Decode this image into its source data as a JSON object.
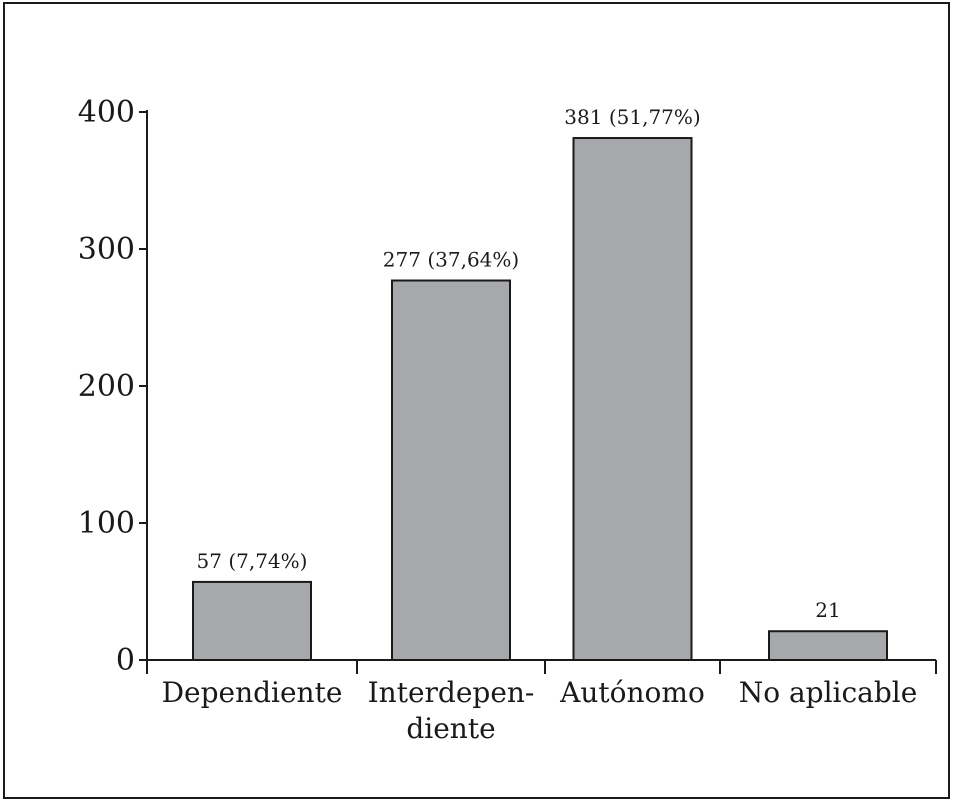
{
  "chart_data": {
    "type": "bar",
    "categories": [
      "Dependiente",
      "Interdepen-\ndiente",
      "Autónomo",
      "No aplicable"
    ],
    "values": [
      57,
      277,
      381,
      21
    ],
    "data_labels": [
      "57 (7,74%)",
      "277 (37,64%)",
      "381 (51,77%)",
      "21"
    ],
    "yticks": [
      0,
      100,
      200,
      300,
      400
    ],
    "ylim": [
      0,
      400
    ],
    "title": "",
    "xlabel": "",
    "ylabel": "",
    "grid": false,
    "legend": "none",
    "colors": {
      "bar_fill": "#a7a8ab",
      "bar_stroke": "#1a1a1a",
      "axis": "#1a1a1a",
      "text": "#1a1a1a"
    }
  }
}
